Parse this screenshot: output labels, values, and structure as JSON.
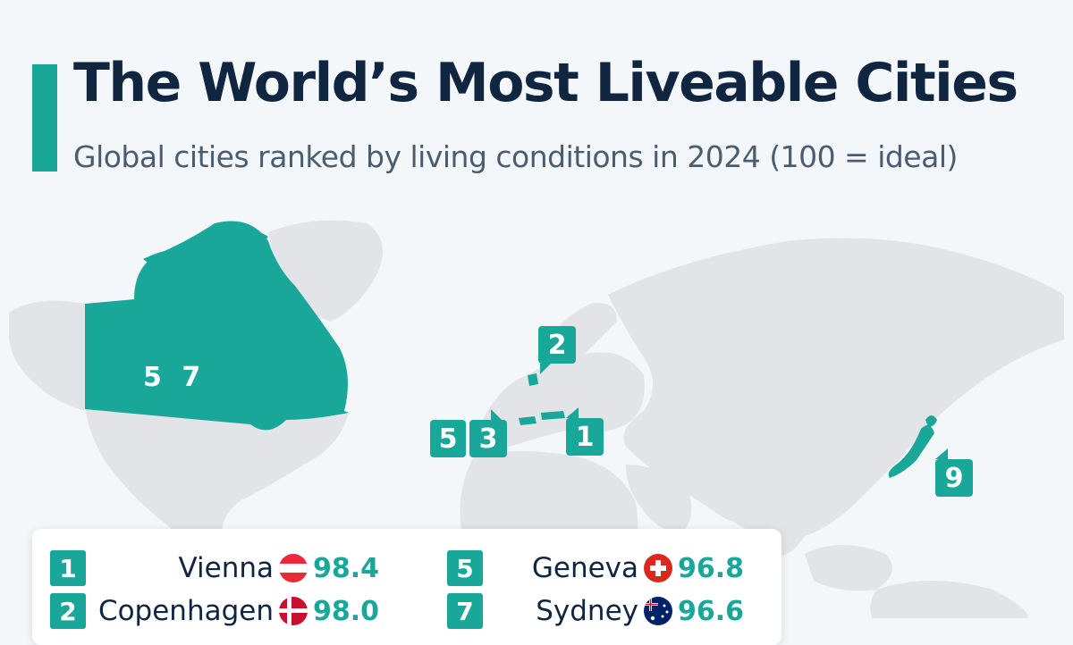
{
  "header": {
    "title": "The World’s Most Liveable Cities",
    "subtitle": "Global cities ranked by living conditions in 2024 (100 = ideal)"
  },
  "map": {
    "land_color": "#e2e4e7",
    "highlight_color": "#19a79a",
    "canada_label": "5 7",
    "markers": [
      {
        "label": "2",
        "tail": "tail-down-left",
        "region": "denmark"
      },
      {
        "label": "5",
        "tail": "none",
        "region": "switzerland"
      },
      {
        "label": "3",
        "tail": "tail-up-right",
        "region": "switzerland"
      },
      {
        "label": "1",
        "tail": "tail-up-left",
        "region": "austria"
      },
      {
        "label": "9",
        "tail": "tail-up-left",
        "region": "japan"
      }
    ]
  },
  "rankings": [
    {
      "rank": "1",
      "city": "Vienna",
      "flag": "austria-flag-icon",
      "score": "98.4"
    },
    {
      "rank": "2",
      "city": "Copenhagen",
      "flag": "denmark-flag-icon",
      "score": "98.0"
    },
    {
      "rank": "5",
      "city": "Geneva",
      "flag": "switzerland-flag-icon",
      "score": "96.8"
    },
    {
      "rank": "7",
      "city": "Sydney",
      "flag": "australia-flag-icon",
      "score": "96.6"
    }
  ]
}
